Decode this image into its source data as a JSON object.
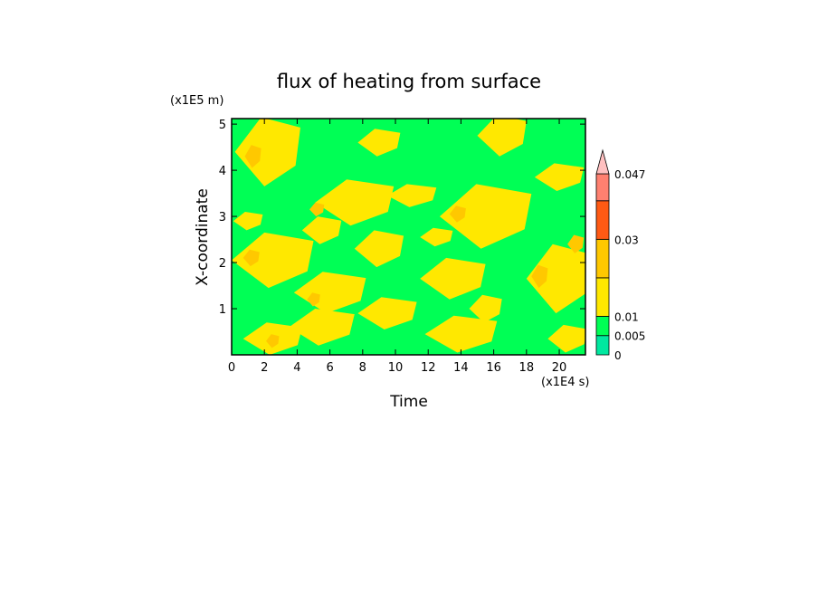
{
  "chart_data": {
    "type": "heatmap",
    "title": "flux of heating from surface",
    "xlabel": "Time",
    "ylabel": "X-coordinate",
    "x_unit_label": "(x1E4 s)",
    "y_unit_label": "(x1E5 m)",
    "xlim": [
      0,
      21.6
    ],
    "ylim": [
      0,
      5.12
    ],
    "x_ticks": [
      "0",
      "2",
      "4",
      "6",
      "8",
      "10",
      "12",
      "14",
      "16",
      "18",
      "20"
    ],
    "y_ticks": [
      "1",
      "2",
      "3",
      "4",
      "5"
    ],
    "colorbar": {
      "levels": [
        0,
        0.005,
        0.01,
        0.02,
        0.03,
        0.04,
        0.047
      ],
      "labels": [
        "0",
        "0.005",
        "0.01",
        "0.03",
        "0.047"
      ],
      "colors": [
        "#6a0dad",
        "#00e8a0",
        "#00ff55",
        "#ffe800",
        "#ffc800",
        "#ff5a14",
        "#ff8070",
        "#ffc0c0"
      ],
      "extend": "max"
    },
    "background_color": "#00ff55",
    "patches": [
      {
        "t": 2.2,
        "x": 4.4,
        "dt": 2.0,
        "dx": 0.75,
        "level": 0.011
      },
      {
        "t": 9.0,
        "x": 4.6,
        "dt": 1.3,
        "dx": 0.3,
        "level": 0.011
      },
      {
        "t": 16.5,
        "x": 4.75,
        "dt": 1.5,
        "dx": 0.45,
        "level": 0.011
      },
      {
        "t": 20.0,
        "x": 3.85,
        "dt": 1.5,
        "dx": 0.3,
        "level": 0.011
      },
      {
        "t": 7.5,
        "x": 3.3,
        "dt": 2.4,
        "dx": 0.5,
        "level": 0.011
      },
      {
        "t": 15.5,
        "x": 3.0,
        "dt": 2.8,
        "dx": 0.7,
        "level": 0.011
      },
      {
        "t": 11.0,
        "x": 3.45,
        "dt": 1.5,
        "dx": 0.25,
        "level": 0.011
      },
      {
        "t": 1.0,
        "x": 2.9,
        "dt": 0.9,
        "dx": 0.2,
        "level": 0.011
      },
      {
        "t": 5.5,
        "x": 2.7,
        "dt": 1.2,
        "dx": 0.3,
        "level": 0.011
      },
      {
        "t": 2.5,
        "x": 2.05,
        "dt": 2.5,
        "dx": 0.6,
        "level": 0.011
      },
      {
        "t": 9.0,
        "x": 2.3,
        "dt": 1.5,
        "dx": 0.4,
        "level": 0.011
      },
      {
        "t": 13.5,
        "x": 1.65,
        "dt": 2.0,
        "dx": 0.45,
        "level": 0.011
      },
      {
        "t": 20.0,
        "x": 1.65,
        "dt": 2.0,
        "dx": 0.75,
        "level": 0.011
      },
      {
        "t": 6.0,
        "x": 1.35,
        "dt": 2.2,
        "dx": 0.45,
        "level": 0.011
      },
      {
        "t": 9.5,
        "x": 0.9,
        "dt": 1.8,
        "dx": 0.35,
        "level": 0.011
      },
      {
        "t": 15.5,
        "x": 1.0,
        "dt": 1.0,
        "dx": 0.3,
        "level": 0.011
      },
      {
        "t": 2.5,
        "x": 0.35,
        "dt": 1.8,
        "dx": 0.35,
        "level": 0.011
      },
      {
        "t": 5.5,
        "x": 0.6,
        "dt": 2.0,
        "dx": 0.4,
        "level": 0.011
      },
      {
        "t": 14.0,
        "x": 0.45,
        "dt": 2.2,
        "dx": 0.4,
        "level": 0.011
      },
      {
        "t": 20.5,
        "x": 0.35,
        "dt": 1.2,
        "dx": 0.3,
        "level": 0.011
      },
      {
        "t": 12.5,
        "x": 2.55,
        "dt": 1.0,
        "dx": 0.2,
        "level": 0.011
      },
      {
        "t": 2.2,
        "x": 4.3,
        "dt": 1.2,
        "dx": 0.45,
        "level": 0.016
      },
      {
        "t": 7.5,
        "x": 3.3,
        "dt": 1.4,
        "dx": 0.3,
        "level": 0.016
      },
      {
        "t": 15.2,
        "x": 3.0,
        "dt": 1.7,
        "dx": 0.45,
        "level": 0.016
      },
      {
        "t": 2.5,
        "x": 2.0,
        "dt": 1.5,
        "dx": 0.35,
        "level": 0.016
      },
      {
        "t": 20.0,
        "x": 1.65,
        "dt": 1.2,
        "dx": 0.45,
        "level": 0.016
      },
      {
        "t": 6.2,
        "x": 1.35,
        "dt": 1.2,
        "dx": 0.25,
        "level": 0.016
      },
      {
        "t": 16.5,
        "x": 4.8,
        "dt": 0.9,
        "dx": 0.25,
        "level": 0.016
      },
      {
        "t": 14.0,
        "x": 0.4,
        "dt": 1.3,
        "dx": 0.25,
        "level": 0.016
      },
      {
        "t": 1.3,
        "x": 4.3,
        "dt": 0.5,
        "dx": 0.25,
        "level": 0.025
      },
      {
        "t": 5.2,
        "x": 3.15,
        "dt": 0.45,
        "dx": 0.15,
        "level": 0.025
      },
      {
        "t": 13.8,
        "x": 3.05,
        "dt": 0.5,
        "dx": 0.18,
        "level": 0.025
      },
      {
        "t": 1.2,
        "x": 2.1,
        "dt": 0.5,
        "dx": 0.18,
        "level": 0.025
      },
      {
        "t": 18.8,
        "x": 1.7,
        "dt": 0.5,
        "dx": 0.25,
        "level": 0.025
      },
      {
        "t": 5.0,
        "x": 1.2,
        "dt": 0.4,
        "dx": 0.15,
        "level": 0.025
      },
      {
        "t": 2.5,
        "x": 0.3,
        "dt": 0.4,
        "dx": 0.15,
        "level": 0.025
      },
      {
        "t": 21.0,
        "x": 2.4,
        "dt": 0.5,
        "dx": 0.2,
        "level": 0.025
      }
    ]
  }
}
